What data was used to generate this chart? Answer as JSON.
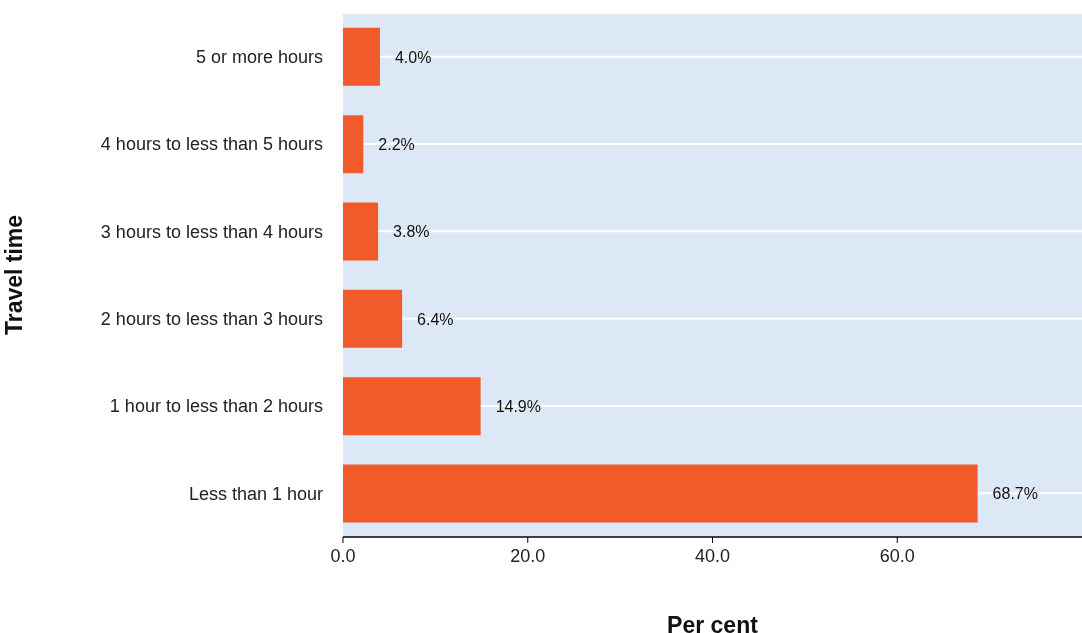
{
  "chart_data": {
    "type": "bar",
    "orientation": "horizontal",
    "xlabel": "Per cent",
    "ylabel": "Travel time",
    "categories": [
      "5 or more hours",
      "4 hours to less than 5 hours",
      "3 hours to less than 4 hours",
      "2 hours to less than 3 hours",
      "1 hour to less than 2 hours",
      "Less than 1 hour"
    ],
    "values": [
      4.0,
      2.2,
      3.8,
      6.4,
      14.9,
      68.7
    ],
    "value_labels": [
      "4.0%",
      "2.2%",
      "3.8%",
      "6.4%",
      "14.9%",
      "68.7%"
    ],
    "color": "#f15a2b",
    "xlim": [
      0,
      80
    ],
    "xticks": [
      {
        "value": 0,
        "label": "0.0"
      },
      {
        "value": 20,
        "label": "20.0"
      },
      {
        "value": 40,
        "label": "40.0"
      },
      {
        "value": 60,
        "label": "60.0"
      }
    ],
    "grid": "y"
  }
}
